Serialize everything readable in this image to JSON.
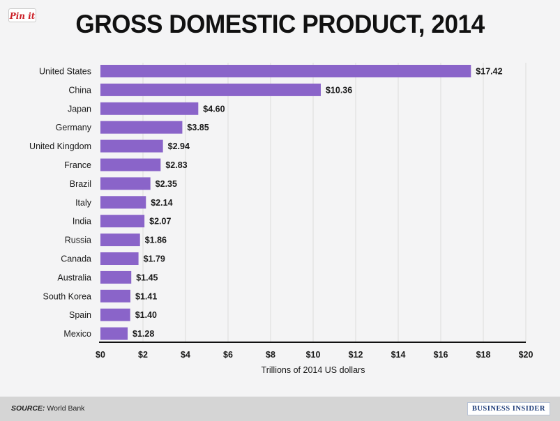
{
  "pin_badge": "Pin it",
  "chart_data": {
    "type": "bar",
    "orientation": "horizontal",
    "title": "GROSS DOMESTIC PRODUCT, 2014",
    "xlabel": "Trillions of 2014 US dollars",
    "ylabel": "",
    "xlim": [
      0,
      20
    ],
    "grid": true,
    "categories": [
      "United States",
      "China",
      "Japan",
      "Germany",
      "United Kingdom",
      "France",
      "Brazil",
      "Italy",
      "India",
      "Russia",
      "Canada",
      "Australia",
      "South Korea",
      "Spain",
      "Mexico"
    ],
    "values": [
      17.42,
      10.36,
      4.6,
      3.85,
      2.94,
      2.83,
      2.35,
      2.14,
      2.07,
      1.86,
      1.79,
      1.45,
      1.41,
      1.4,
      1.28
    ],
    "value_labels": [
      "$17.42",
      "$10.36",
      "$4.60",
      "$3.85",
      "$2.94",
      "$2.83",
      "$2.35",
      "$2.14",
      "$2.07",
      "$1.86",
      "$1.79",
      "$1.45",
      "$1.41",
      "$1.40",
      "$1.28"
    ],
    "x_ticks": [
      0,
      2,
      4,
      6,
      8,
      10,
      12,
      14,
      16,
      18,
      20
    ],
    "x_tick_labels": [
      "$0",
      "$2",
      "$4",
      "$6",
      "$8",
      "$10",
      "$12",
      "$14",
      "$16",
      "$18",
      "$20"
    ],
    "colors": {
      "bar": "#8a64c9",
      "grid": "#dcdcdc",
      "axis": "#111111",
      "text": "#1a1a1a"
    }
  },
  "footer": {
    "source_label": "SOURCE:",
    "source_value": "World Bank",
    "brand": "BUSINESS INSIDER"
  }
}
